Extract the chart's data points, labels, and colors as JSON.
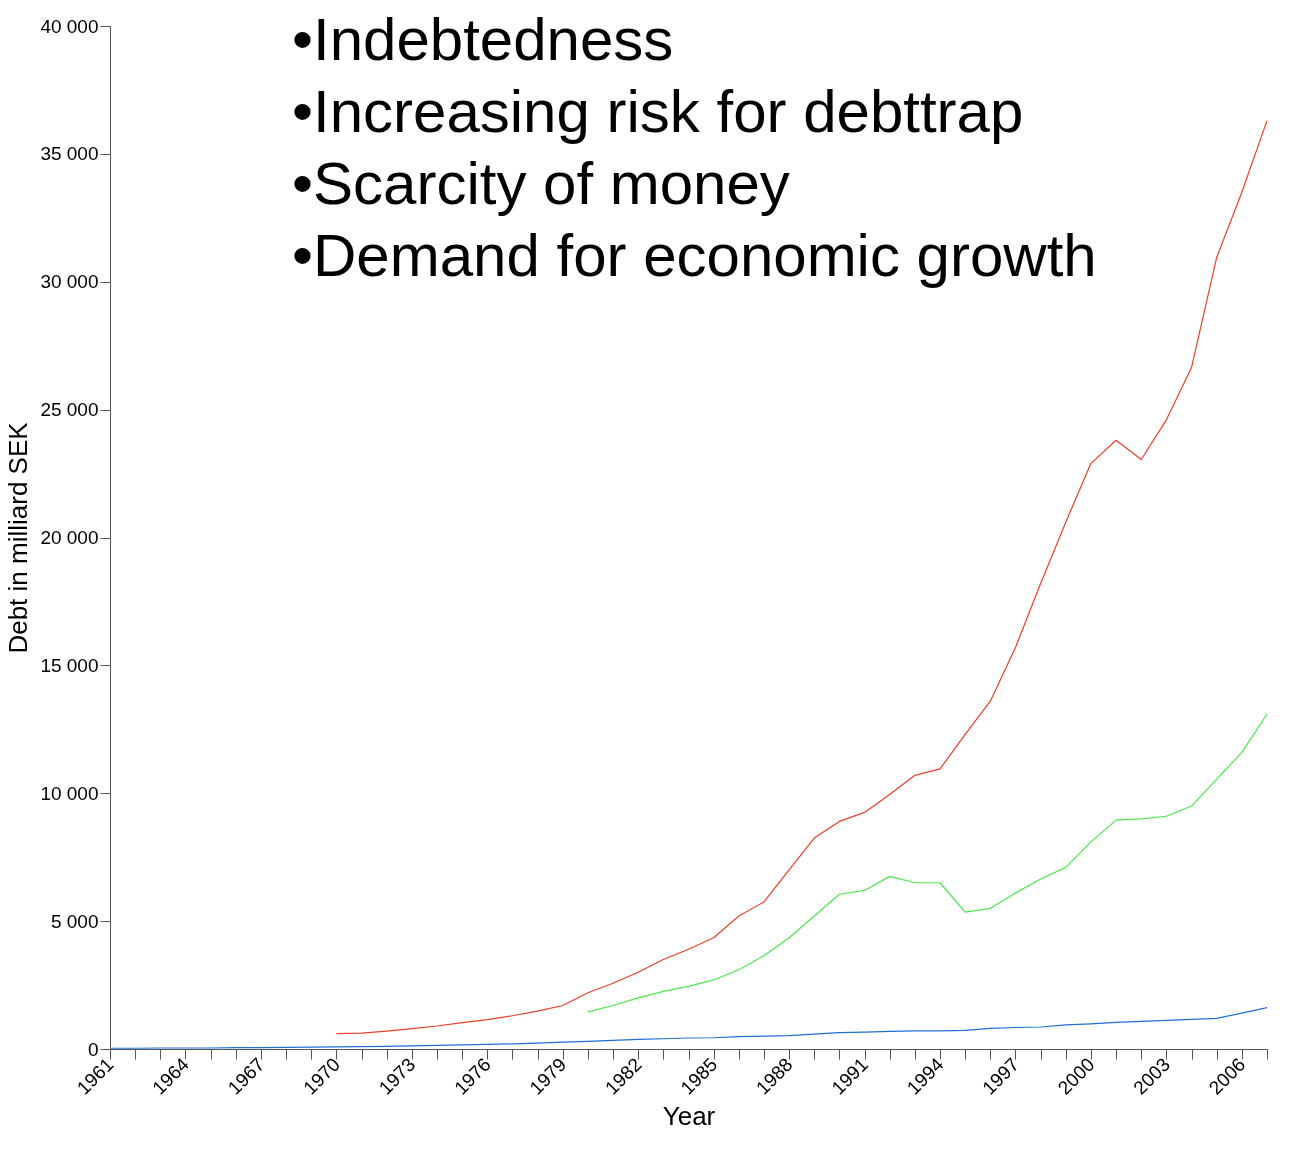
{
  "chart_data": {
    "type": "line",
    "xlabel": "Year",
    "ylabel": "Debt in milliard SEK",
    "annotations": [
      "•Indebtedness",
      "•Increasing risk for debttrap",
      "•Scarcity of money",
      "•Demand for economic growth"
    ],
    "xlim": [
      1961,
      2007
    ],
    "xticks": [
      1961,
      {
        "value": 1962,
        "label": null
      },
      {
        "value": 1963,
        "label": null
      },
      1964,
      {
        "value": 1965,
        "label": null
      },
      {
        "value": 1966,
        "label": null
      },
      1967,
      {
        "value": 1968,
        "label": null
      },
      {
        "value": 1969,
        "label": null
      },
      1970,
      {
        "value": 1971,
        "label": null
      },
      {
        "value": 1972,
        "label": null
      },
      1973,
      {
        "value": 1974,
        "label": null
      },
      {
        "value": 1975,
        "label": null
      },
      1976,
      {
        "value": 1977,
        "label": null
      },
      {
        "value": 1978,
        "label": null
      },
      1979,
      {
        "value": 1980,
        "label": null
      },
      {
        "value": 1981,
        "label": null
      },
      1982,
      {
        "value": 1983,
        "label": null
      },
      {
        "value": 1984,
        "label": null
      },
      1985,
      {
        "value": 1986,
        "label": null
      },
      {
        "value": 1987,
        "label": null
      },
      1988,
      {
        "value": 1989,
        "label": null
      },
      {
        "value": 1990,
        "label": null
      },
      1991,
      {
        "value": 1992,
        "label": null
      },
      {
        "value": 1993,
        "label": null
      },
      1994,
      {
        "value": 1995,
        "label": null
      },
      {
        "value": 1996,
        "label": null
      },
      1997,
      {
        "value": 1998,
        "label": null
      },
      {
        "value": 1999,
        "label": null
      },
      2000,
      {
        "value": 2001,
        "label": null
      },
      {
        "value": 2002,
        "label": null
      },
      2003,
      {
        "value": 2004,
        "label": null
      },
      {
        "value": 2005,
        "label": null
      },
      2006,
      {
        "value": 2007,
        "label": null
      }
    ],
    "ylim": [
      0,
      40000
    ],
    "yticks": [
      0,
      {
        "value": 5000,
        "label": "5 000"
      },
      {
        "value": 10000,
        "label": "10 000"
      },
      {
        "value": 15000,
        "label": "15 000"
      },
      {
        "value": 20000,
        "label": "20 000"
      },
      {
        "value": 25000,
        "label": "25 000"
      },
      {
        "value": 30000,
        "label": "30 000"
      },
      {
        "value": 35000,
        "label": "35 000"
      },
      {
        "value": 40000,
        "label": "40 000"
      }
    ],
    "grid": false,
    "legend": false,
    "line_style": "solid",
    "marker": "none",
    "series": [
      {
        "color": "#e8412a",
        "x": [
          1970,
          1971,
          1972,
          1973,
          1974,
          1975,
          1976,
          1977,
          1978,
          1979,
          1980,
          1981,
          1982,
          1983,
          1984,
          1985,
          1986,
          1987,
          1988,
          1989,
          1990,
          1991,
          1992,
          1993,
          1994,
          1995,
          1996,
          1997,
          1998,
          1999,
          2000,
          2001,
          2002,
          2003,
          2004,
          2005,
          2006,
          2007
        ],
        "values": [
          600,
          620,
          700,
          800,
          900,
          1030,
          1150,
          1300,
          1480,
          1700,
          2200,
          2570,
          3000,
          3500,
          3900,
          4350,
          5200,
          5750,
          7000,
          8250,
          8900,
          9250,
          9950,
          10700,
          10950,
          12300,
          13600,
          15700,
          18200,
          20600,
          22900,
          23800,
          23050,
          24600,
          26650,
          30950,
          33500,
          36300
        ]
      },
      {
        "color": "#4ce84c",
        "x": [
          1980,
          1981,
          1982,
          1983,
          1984,
          1985,
          1986,
          1987,
          1988,
          1989,
          1990,
          1991,
          1992,
          1993,
          1994,
          1995,
          1996,
          1997,
          1998,
          1999,
          2000,
          2001,
          2002,
          2003,
          2004,
          2005,
          2006,
          2007
        ],
        "values": [
          1450,
          1700,
          2000,
          2250,
          2450,
          2700,
          3100,
          3650,
          4350,
          5200,
          6050,
          6200,
          6750,
          6500,
          6500,
          5350,
          5500,
          6100,
          6650,
          7100,
          8100,
          8950,
          9000,
          9100,
          9500,
          10550,
          11600,
          13100
        ]
      },
      {
        "color": "#1f6fd6",
        "x": [
          1961,
          1962,
          1963,
          1964,
          1965,
          1966,
          1967,
          1968,
          1969,
          1970,
          1971,
          1972,
          1973,
          1974,
          1975,
          1976,
          1977,
          1978,
          1979,
          1980,
          1981,
          1982,
          1983,
          1984,
          1985,
          1986,
          1987,
          1988,
          1989,
          1990,
          1991,
          1992,
          1993,
          1994,
          1995,
          1996,
          1997,
          1998,
          1999,
          2000,
          2001,
          2002,
          2003,
          2004,
          2005,
          2006,
          2007
        ],
        "values": [
          30,
          30,
          40,
          40,
          40,
          50,
          50,
          60,
          70,
          80,
          90,
          100,
          120,
          140,
          160,
          180,
          200,
          230,
          270,
          300,
          340,
          380,
          400,
          430,
          440,
          480,
          500,
          520,
          580,
          640,
          660,
          690,
          710,
          710,
          730,
          810,
          840,
          860,
          940,
          980,
          1040,
          1080,
          1120,
          1160,
          1200,
          1400,
          1620
        ]
      }
    ]
  }
}
